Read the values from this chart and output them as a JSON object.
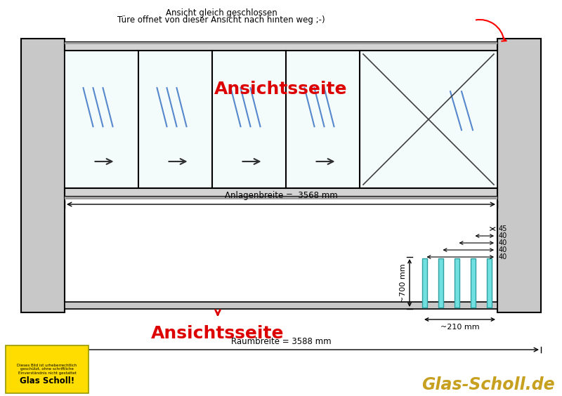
{
  "bg_color": "#ffffff",
  "title_text1": "Ansicht gleich geschlossen",
  "title_text2": "Türe offnet von dieser Ansicht nach hinten weg ;-)",
  "wall_color": "#c8c8c8",
  "glass_bg": "#f4fbfb",
  "ansichtsseite_color": "#dd0000",
  "dim_anlagen": "Anlagenbreite =  3568 mm",
  "dim_raum": "Raumbreite = 3588 mm",
  "dim_700": "~700 mm",
  "dim_210": "~210 mm",
  "ansichtsseite_top": "Ansichtsseite",
  "ansichtsseite_bottom": "Ansichtsseite",
  "brand_text": "Glas-Scholl.de",
  "brand_text_color": "#c8a020"
}
